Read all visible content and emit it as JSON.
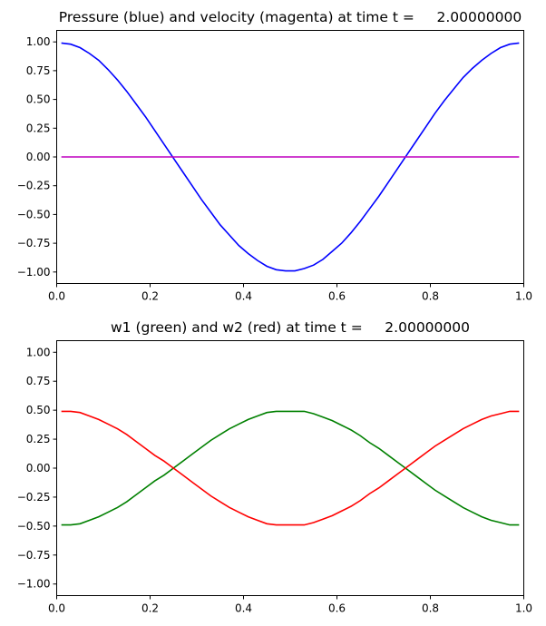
{
  "chart_data": [
    {
      "type": "line",
      "title": "Pressure (blue) and velocity (magenta) at time t =     2.00000000",
      "xlabel": "",
      "ylabel": "",
      "xlim": [
        0,
        1
      ],
      "ylim": [
        -1.1,
        1.1
      ],
      "xticks": [
        "0.0",
        "0.2",
        "0.4",
        "0.6",
        "0.8",
        "1.0"
      ],
      "yticks": [
        "1.00",
        "0.75",
        "0.50",
        "0.25",
        "0.00",
        "−0.25",
        "−0.50",
        "−0.75",
        "−1.00"
      ],
      "grid": false,
      "x": [
        0.01,
        0.03,
        0.05,
        0.07,
        0.09,
        0.11,
        0.13,
        0.15,
        0.17,
        0.19,
        0.21,
        0.23,
        0.25,
        0.27,
        0.29,
        0.31,
        0.33,
        0.35,
        0.37,
        0.39,
        0.41,
        0.43,
        0.45,
        0.47,
        0.49,
        0.51,
        0.53,
        0.55,
        0.57,
        0.59,
        0.61,
        0.63,
        0.65,
        0.67,
        0.69,
        0.71,
        0.73,
        0.75,
        0.77,
        0.79,
        0.81,
        0.83,
        0.85,
        0.87,
        0.89,
        0.91,
        0.93,
        0.95,
        0.97,
        0.99
      ],
      "series": [
        {
          "color": "#0000ff",
          "values": [
            0.99,
            0.98,
            0.95,
            0.9,
            0.84,
            0.76,
            0.67,
            0.57,
            0.46,
            0.35,
            0.23,
            0.11,
            -0.01,
            -0.13,
            -0.25,
            -0.37,
            -0.48,
            -0.59,
            -0.68,
            -0.77,
            -0.84,
            -0.9,
            -0.95,
            -0.98,
            -0.99,
            -0.99,
            -0.97,
            -0.94,
            -0.89,
            -0.82,
            -0.75,
            -0.66,
            -0.56,
            -0.45,
            -0.34,
            -0.22,
            -0.1,
            0.02,
            0.14,
            0.26,
            0.38,
            0.49,
            0.59,
            0.69,
            0.77,
            0.84,
            0.9,
            0.95,
            0.98,
            0.99
          ]
        },
        {
          "color": "#bf00bf",
          "values": [
            0.0,
            0.0,
            0.0,
            0.0,
            0.0,
            0.0,
            0.0,
            0.0,
            0.0,
            0.0,
            0.0,
            0.0,
            0.0,
            0.0,
            0.0,
            0.0,
            0.0,
            0.0,
            0.0,
            0.0,
            0.0,
            0.0,
            0.0,
            0.0,
            0.0,
            0.0,
            0.0,
            0.0,
            0.0,
            0.0,
            0.0,
            0.0,
            0.0,
            0.0,
            0.0,
            0.0,
            0.0,
            0.0,
            0.0,
            0.0,
            0.0,
            0.0,
            0.0,
            0.0,
            0.0,
            0.0,
            0.0,
            0.0,
            0.0,
            0.0
          ]
        }
      ]
    },
    {
      "type": "line",
      "title": "w1 (green) and w2 (red) at time t =     2.00000000",
      "xlabel": "",
      "ylabel": "",
      "xlim": [
        0,
        1
      ],
      "ylim": [
        -1.1,
        1.1
      ],
      "xticks": [
        "0.0",
        "0.2",
        "0.4",
        "0.6",
        "0.8",
        "1.0"
      ],
      "yticks": [
        "1.00",
        "0.75",
        "0.50",
        "0.25",
        "0.00",
        "−0.25",
        "−0.50",
        "−0.75",
        "−1.00"
      ],
      "grid": false,
      "x": [
        0.01,
        0.03,
        0.05,
        0.07,
        0.09,
        0.11,
        0.13,
        0.15,
        0.17,
        0.19,
        0.21,
        0.23,
        0.25,
        0.27,
        0.29,
        0.31,
        0.33,
        0.35,
        0.37,
        0.39,
        0.41,
        0.43,
        0.45,
        0.47,
        0.49,
        0.51,
        0.53,
        0.55,
        0.57,
        0.59,
        0.61,
        0.63,
        0.65,
        0.67,
        0.69,
        0.71,
        0.73,
        0.75,
        0.77,
        0.79,
        0.81,
        0.83,
        0.85,
        0.87,
        0.89,
        0.91,
        0.93,
        0.95,
        0.97,
        0.99
      ],
      "series": [
        {
          "color": "#008000",
          "values": [
            -0.49,
            -0.49,
            -0.48,
            -0.45,
            -0.42,
            -0.38,
            -0.34,
            -0.29,
            -0.23,
            -0.17,
            -0.11,
            -0.06,
            0.0,
            0.06,
            0.12,
            0.18,
            0.24,
            0.29,
            0.34,
            0.38,
            0.42,
            0.45,
            0.48,
            0.49,
            0.49,
            0.49,
            0.49,
            0.47,
            0.44,
            0.41,
            0.37,
            0.33,
            0.28,
            0.22,
            0.17,
            0.11,
            0.05,
            -0.01,
            -0.07,
            -0.13,
            -0.19,
            -0.24,
            -0.29,
            -0.34,
            -0.38,
            -0.42,
            -0.45,
            -0.47,
            -0.49,
            -0.49
          ]
        },
        {
          "color": "#ff0000",
          "values": [
            0.49,
            0.49,
            0.48,
            0.45,
            0.42,
            0.38,
            0.34,
            0.29,
            0.23,
            0.17,
            0.11,
            0.06,
            0.0,
            -0.06,
            -0.12,
            -0.18,
            -0.24,
            -0.29,
            -0.34,
            -0.38,
            -0.42,
            -0.45,
            -0.48,
            -0.49,
            -0.49,
            -0.49,
            -0.49,
            -0.47,
            -0.44,
            -0.41,
            -0.37,
            -0.33,
            -0.28,
            -0.22,
            -0.17,
            -0.11,
            -0.05,
            0.01,
            0.07,
            0.13,
            0.19,
            0.24,
            0.29,
            0.34,
            0.38,
            0.42,
            0.45,
            0.47,
            0.49,
            0.49
          ]
        }
      ]
    }
  ]
}
